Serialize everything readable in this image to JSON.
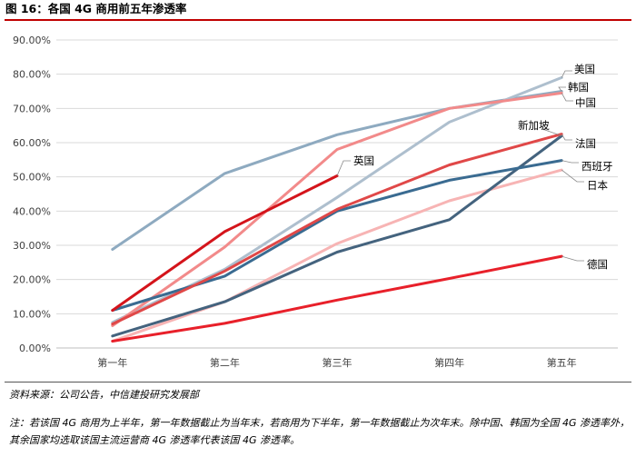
{
  "header": {
    "title": "图 16：各国 4G 商用前五年渗透率"
  },
  "footer": {
    "source": "资料来源：公司公告，中信建投研究发展部",
    "note": "注：若该国 4G 商用为上半年，第一年数据截止为当年末，若商用为下半年，第一年数据截止为次年末。除中国、韩国为全国 4G 渗透率外，其余国家均选取该国主流运营商 4G 渗透率代表该国 4G 渗透率。"
  },
  "chart_data": {
    "type": "line",
    "title": "各国 4G 商用前五年渗透率",
    "xlabel": "",
    "ylabel": "",
    "categories": [
      "第一年",
      "第二年",
      "第三年",
      "第四年",
      "第五年"
    ],
    "ylim": [
      0,
      90
    ],
    "yticks": [
      "0.00%",
      "10.00%",
      "20.00%",
      "30.00%",
      "40.00%",
      "50.00%",
      "60.00%",
      "70.00%",
      "80.00%",
      "90.00%"
    ],
    "grid": true,
    "series": [
      {
        "name": "韩国",
        "color": "#8eaac0",
        "values": [
          28.8,
          51.0,
          62.3,
          70.0,
          75.0
        ]
      },
      {
        "name": "美国",
        "color": "#aebfce",
        "values": [
          7.5,
          23.0,
          44.0,
          66.0,
          79.0
        ]
      },
      {
        "name": "中国",
        "color": "#f28a8a",
        "values": [
          6.5,
          29.5,
          58.0,
          70.0,
          74.5
        ]
      },
      {
        "name": "日本",
        "color": "#f7b4b4",
        "values": [
          2.0,
          13.5,
          30.5,
          43.0,
          52.0
        ]
      },
      {
        "name": "新加坡",
        "color": "#44637e",
        "values": [
          3.5,
          13.5,
          28.0,
          37.5,
          62.0
        ]
      },
      {
        "name": "西班牙",
        "color": "#3a6b91",
        "values": [
          11.0,
          21.0,
          40.0,
          49.0,
          54.8
        ]
      },
      {
        "name": "法国",
        "color": "#e04848",
        "values": [
          7.0,
          22.5,
          40.5,
          53.5,
          62.5
        ]
      },
      {
        "name": "德国",
        "color": "#e8202a",
        "values": [
          2.0,
          7.2,
          14.0,
          20.3,
          26.8
        ]
      },
      {
        "name": "英国",
        "color": "#d4141b",
        "values": [
          11.0,
          34.0,
          50.3,
          null,
          null
        ]
      }
    ]
  }
}
